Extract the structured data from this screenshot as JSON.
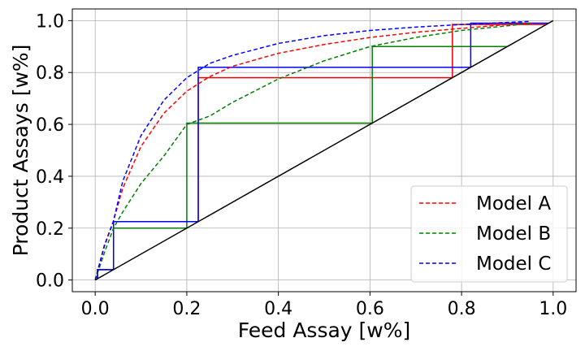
{
  "chart_data": {
    "type": "line",
    "title": "",
    "xlabel": "Feed Assay [w%]",
    "ylabel": "Product Assays [w%]",
    "xlim": [
      -0.05,
      1.05
    ],
    "ylim": [
      -0.045,
      1.045
    ],
    "x_ticks": [
      0.0,
      0.2,
      0.4,
      0.6,
      0.8,
      1.0
    ],
    "x_tick_labels": [
      "0.0",
      "0.2",
      "0.4",
      "0.6",
      "0.8",
      "1.0"
    ],
    "y_ticks": [
      0.0,
      0.2,
      0.4,
      0.6,
      0.8,
      1.0
    ],
    "y_tick_labels": [
      "0.0",
      "0.2",
      "0.4",
      "0.6",
      "0.8",
      "1.0"
    ],
    "grid": true,
    "legend_position": "lower-right",
    "diagonal": {
      "x": [
        0,
        1
      ],
      "y": [
        0,
        1
      ],
      "color": "#000000"
    },
    "series": [
      {
        "name": "Model A",
        "color": "#ff0000",
        "curve": {
          "x": [
            0.0,
            0.02,
            0.04,
            0.06,
            0.1,
            0.15,
            0.2,
            0.25,
            0.3,
            0.4,
            0.5,
            0.6,
            0.7,
            0.8,
            0.9,
            0.95
          ],
          "y": [
            0.0,
            0.135,
            0.228,
            0.353,
            0.515,
            0.643,
            0.728,
            0.784,
            0.824,
            0.874,
            0.908,
            0.935,
            0.955,
            0.97,
            0.985,
            0.99
          ]
        },
        "stages": [
          [
            0.005,
            0.04
          ],
          [
            0.04,
            0.225
          ],
          [
            0.225,
            0.78
          ],
          [
            0.78,
            0.985
          ]
        ]
      },
      {
        "name": "Model B",
        "color": "#008000",
        "curve": {
          "x": [
            0.0,
            0.02,
            0.04,
            0.06,
            0.1,
            0.15,
            0.2,
            0.25,
            0.3,
            0.4,
            0.5,
            0.6,
            0.7,
            0.8,
            0.9,
            0.95
          ],
          "y": [
            0.0,
            0.105,
            0.2,
            0.262,
            0.372,
            0.478,
            0.6,
            0.632,
            0.685,
            0.775,
            0.845,
            0.9,
            0.935,
            0.962,
            0.98,
            0.99
          ]
        },
        "stages": [
          [
            0.005,
            0.04
          ],
          [
            0.04,
            0.2
          ],
          [
            0.2,
            0.605
          ],
          [
            0.605,
            0.9
          ],
          [
            0.9,
            0.9
          ]
        ]
      },
      {
        "name": "Model C",
        "color": "#0000ff",
        "curve": {
          "x": [
            0.0,
            0.02,
            0.04,
            0.06,
            0.1,
            0.15,
            0.2,
            0.25,
            0.3,
            0.4,
            0.5,
            0.6,
            0.7,
            0.8,
            0.9,
            0.95
          ],
          "y": [
            0.0,
            0.13,
            0.228,
            0.38,
            0.557,
            0.693,
            0.78,
            0.835,
            0.866,
            0.912,
            0.942,
            0.962,
            0.975,
            0.985,
            0.993,
            0.997
          ]
        },
        "stages": [
          [
            0.005,
            0.04
          ],
          [
            0.04,
            0.225
          ],
          [
            0.225,
            0.82
          ],
          [
            0.82,
            0.99
          ]
        ]
      }
    ]
  }
}
